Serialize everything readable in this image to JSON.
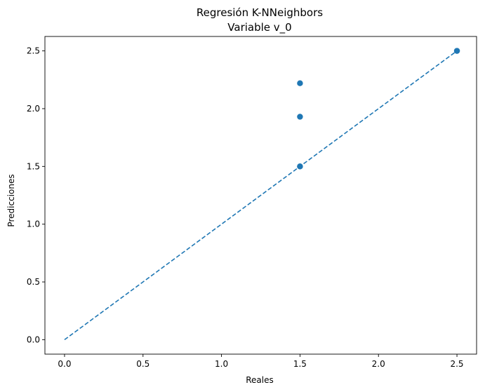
{
  "chart_data": {
    "type": "scatter",
    "title": "Regresión K-NNeighbors",
    "subtitle": "Variable v_0",
    "xlabel": "Reales",
    "ylabel": "Predicciones",
    "xlim": [
      -0.125,
      2.625
    ],
    "ylim": [
      -0.125,
      2.625
    ],
    "xticks": [
      {
        "value": 0.0,
        "label": "0.0"
      },
      {
        "value": 0.5,
        "label": "0.5"
      },
      {
        "value": 1.0,
        "label": "1.0"
      },
      {
        "value": 1.5,
        "label": "1.5"
      },
      {
        "value": 2.0,
        "label": "2.0"
      },
      {
        "value": 2.5,
        "label": "2.5"
      }
    ],
    "yticks": [
      {
        "value": 0.0,
        "label": "0.0"
      },
      {
        "value": 0.5,
        "label": "0.5"
      },
      {
        "value": 1.0,
        "label": "1.0"
      },
      {
        "value": 1.5,
        "label": "1.5"
      },
      {
        "value": 2.0,
        "label": "2.0"
      },
      {
        "value": 2.5,
        "label": "2.5"
      }
    ],
    "grid": false,
    "series": [
      {
        "kind": "scatter",
        "color": "#1f77b4",
        "points": [
          {
            "x": 1.5,
            "y": 2.22
          },
          {
            "x": 1.5,
            "y": 1.93
          },
          {
            "x": 1.5,
            "y": 1.5
          },
          {
            "x": 1.5,
            "y": 1.5
          },
          {
            "x": 2.5,
            "y": 2.5
          },
          {
            "x": 2.5,
            "y": 2.5
          }
        ]
      },
      {
        "kind": "line",
        "style": "dashed",
        "color": "#1f77b4",
        "points": [
          {
            "x": 0.0,
            "y": 0.0
          },
          {
            "x": 2.5,
            "y": 2.5
          }
        ]
      }
    ]
  }
}
